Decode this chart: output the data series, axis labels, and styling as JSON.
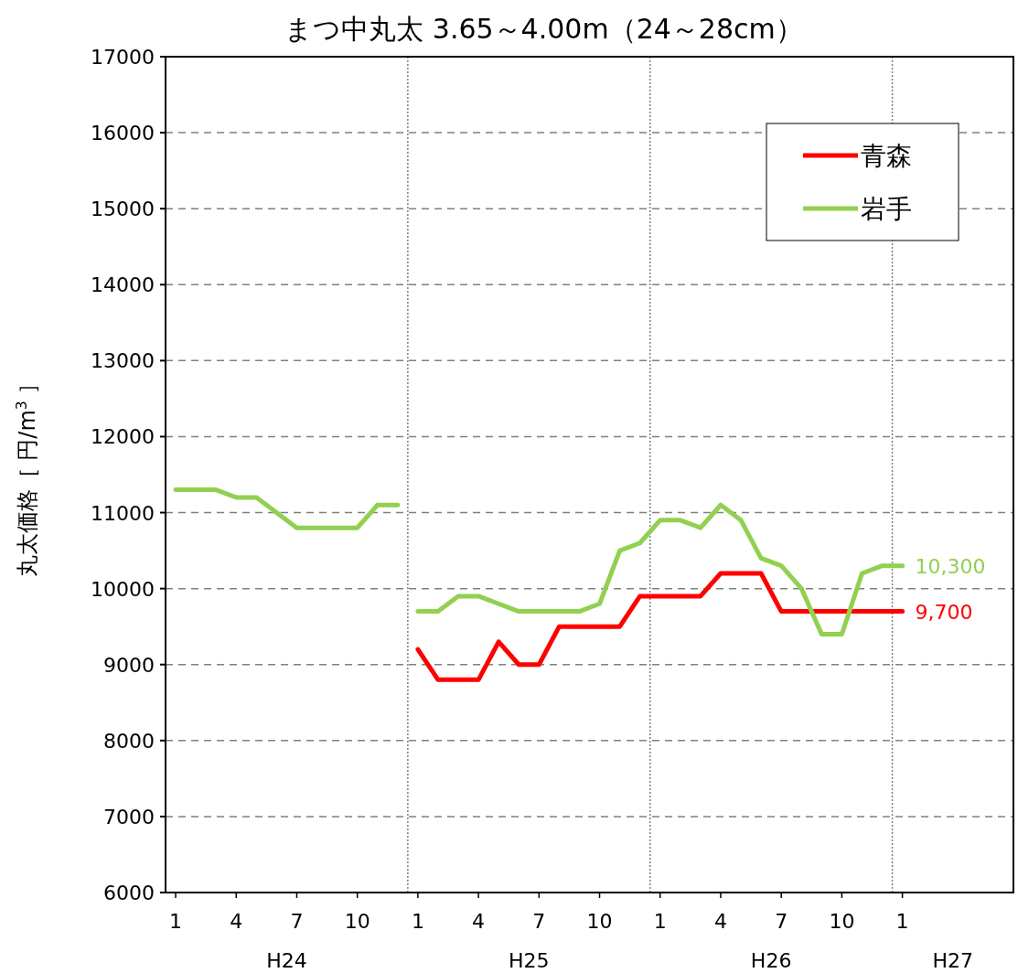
{
  "chart_data": {
    "type": "line",
    "title": "まつ中丸太 3.65～4.00m（24～28cm）",
    "ylabel": "丸太価格［ 円/m$^{3}$ ］",
    "categories": [
      "1",
      null,
      null,
      "4",
      null,
      null,
      "7",
      null,
      null,
      "10",
      null,
      null,
      "1",
      null,
      null,
      "4",
      null,
      null,
      "7",
      null,
      null,
      "10",
      null,
      null,
      "1",
      null,
      null,
      "4",
      null,
      null,
      "7",
      null,
      null,
      "10",
      null,
      null,
      "1",
      null,
      null,
      null,
      null,
      null
    ],
    "annotations": [
      "H24",
      "H25",
      "H26",
      "H27"
    ],
    "ylim": [
      6000,
      17000
    ],
    "yticks": [
      6000,
      7000,
      8000,
      9000,
      10000,
      11000,
      12000,
      13000,
      14000,
      15000,
      16000,
      17000
    ],
    "grid": "y",
    "legend": "top right",
    "series": [
      {
        "name": "青森",
        "color": "#ff0000",
        "values": [
          null,
          null,
          null,
          null,
          null,
          null,
          null,
          null,
          null,
          null,
          null,
          null,
          9200,
          8800,
          8800,
          8800,
          9300,
          9000,
          9000,
          9500,
          9500,
          9500,
          9500,
          9900,
          9900,
          9900,
          9900,
          10200,
          10200,
          10200,
          9700,
          9700,
          9700,
          9700,
          9700,
          9700,
          9700,
          null,
          null,
          null,
          null,
          null
        ],
        "value_labels": [
          null,
          null,
          null,
          null,
          null,
          null,
          null,
          null,
          null,
          null,
          null,
          null,
          null,
          null,
          null,
          null,
          null,
          null,
          null,
          null,
          null,
          null,
          null,
          null,
          null,
          null,
          null,
          null,
          null,
          null,
          null,
          null,
          null,
          null,
          null,
          null,
          "9,700",
          null,
          null,
          null,
          null,
          null
        ]
      },
      {
        "name": "岩手",
        "color": "#92d050",
        "values": [
          11300,
          11300,
          11300,
          11200,
          11200,
          11000,
          10800,
          10800,
          10800,
          10800,
          11100,
          11100,
          null,
          null,
          null,
          null,
          null,
          null,
          null,
          null,
          null,
          null,
          null,
          null,
          null,
          null,
          null,
          null,
          null,
          null,
          null,
          null,
          null,
          null,
          null,
          null,
          null,
          null,
          null,
          null,
          null,
          null
        ]
      },
      {
        "color": "#92d050",
        "values": [
          null,
          null,
          null,
          null,
          null,
          null,
          null,
          null,
          null,
          null,
          null,
          null,
          9700,
          9700,
          9900,
          9900,
          9800,
          9700,
          9700,
          9700,
          9700,
          9800,
          10500,
          10600,
          10900,
          10900,
          10800,
          11100,
          10900,
          10400,
          10300,
          10000,
          9400,
          9400,
          10200,
          10300,
          10300,
          null,
          null,
          null,
          null,
          null
        ],
        "value_labels": [
          null,
          null,
          null,
          null,
          null,
          null,
          null,
          null,
          null,
          null,
          null,
          null,
          null,
          null,
          null,
          null,
          null,
          null,
          null,
          null,
          null,
          null,
          null,
          null,
          null,
          null,
          null,
          null,
          null,
          null,
          null,
          null,
          null,
          null,
          null,
          null,
          "10,300",
          null,
          null,
          null,
          null,
          null
        ]
      }
    ]
  }
}
